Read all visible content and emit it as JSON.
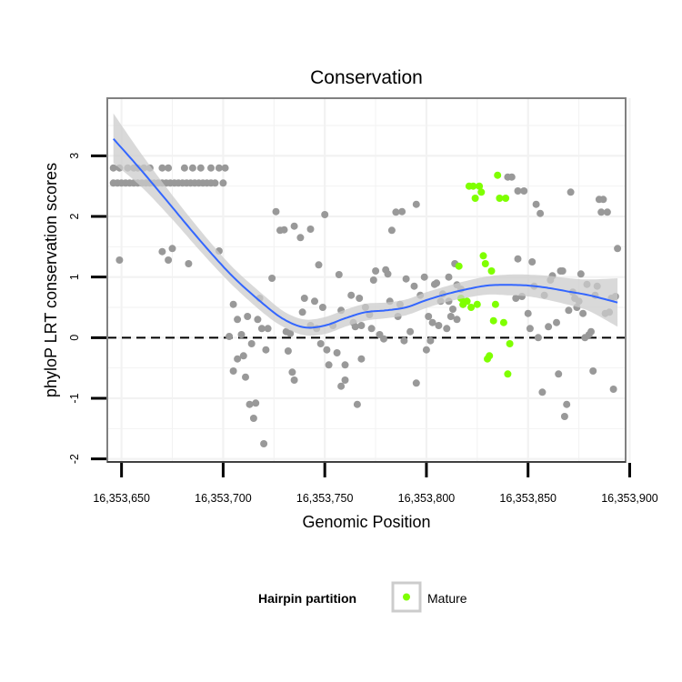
{
  "chart_data": {
    "type": "scatter",
    "title": "Conservation",
    "xlabel": "Genomic Position",
    "ylabel": "phyloP LRT conservation scores",
    "xlim": [
      16353643,
      16353898
    ],
    "ylim": [
      -2.05,
      3.95
    ],
    "x_ticks": [
      16353650,
      16353700,
      16353750,
      16353800,
      16353850,
      16353900
    ],
    "x_tick_labels": [
      "16,353,650",
      "16,353,700",
      "16,353,750",
      "16,353,800",
      "16,353,850",
      "16,353,900"
    ],
    "y_ticks": [
      -2,
      -1,
      0,
      1,
      2,
      3
    ],
    "y_tick_labels": [
      "-2",
      "-1",
      "0",
      "1",
      "2",
      "3"
    ],
    "reference_line": {
      "y": 0,
      "style": "dashed",
      "color": "#000000"
    },
    "legend": {
      "title": "Hairpin partition",
      "entries": [
        {
          "label": "Mature",
          "color": "#7fff00"
        }
      ],
      "position": "bottom"
    },
    "colors": {
      "background_points": "#999999",
      "mature_points": "#7fff00",
      "smooth_line": "#3366ff",
      "confidence_band": "#cccccc",
      "panel_background": "#ffffff",
      "grid": "#f2f2f2",
      "panel_border": "#808080"
    },
    "series": [
      {
        "name": "Hairpin",
        "color": "#999999",
        "points": [
          [
            16353646,
            2.8
          ],
          [
            16353649,
            2.8
          ],
          [
            16353653,
            2.8
          ],
          [
            16353656,
            2.8
          ],
          [
            16353658,
            2.8
          ],
          [
            16353661,
            2.8
          ],
          [
            16353664,
            2.8
          ],
          [
            16353670,
            2.8
          ],
          [
            16353673,
            2.8
          ],
          [
            16353681,
            2.8
          ],
          [
            16353685,
            2.8
          ],
          [
            16353689,
            2.8
          ],
          [
            16353694,
            2.8
          ],
          [
            16353698,
            2.8
          ],
          [
            16353701,
            2.8
          ],
          [
            16353646,
            2.55
          ],
          [
            16353648,
            2.55
          ],
          [
            16353650,
            2.55
          ],
          [
            16353652,
            2.55
          ],
          [
            16353654,
            2.55
          ],
          [
            16353656,
            2.55
          ],
          [
            16353658,
            2.55
          ],
          [
            16353660,
            2.55
          ],
          [
            16353662,
            2.55
          ],
          [
            16353664,
            2.55
          ],
          [
            16353666,
            2.55
          ],
          [
            16353668,
            2.55
          ],
          [
            16353670,
            2.55
          ],
          [
            16353672,
            2.55
          ],
          [
            16353674,
            2.55
          ],
          [
            16353676,
            2.55
          ],
          [
            16353678,
            2.55
          ],
          [
            16353680,
            2.55
          ],
          [
            16353682,
            2.55
          ],
          [
            16353684,
            2.55
          ],
          [
            16353686,
            2.55
          ],
          [
            16353688,
            2.55
          ],
          [
            16353690,
            2.55
          ],
          [
            16353692,
            2.55
          ],
          [
            16353694,
            2.55
          ],
          [
            16353696,
            2.55
          ],
          [
            16353700,
            2.55
          ],
          [
            16353649,
            1.28
          ],
          [
            16353670,
            1.42
          ],
          [
            16353673,
            1.28
          ],
          [
            16353675,
            1.47
          ],
          [
            16353683,
            1.22
          ],
          [
            16353698,
            1.43
          ],
          [
            16353705,
            0.55
          ],
          [
            16353707,
            0.3
          ],
          [
            16353709,
            0.05
          ],
          [
            16353703,
            0.02
          ],
          [
            16353705,
            -0.55
          ],
          [
            16353707,
            -0.35
          ],
          [
            16353710,
            -0.3
          ],
          [
            16353711,
            -0.65
          ],
          [
            16353712,
            0.35
          ],
          [
            16353714,
            -0.1
          ],
          [
            16353713,
            -1.1
          ],
          [
            16353716,
            -1.08
          ],
          [
            16353715,
            -1.33
          ],
          [
            16353717,
            0.3
          ],
          [
            16353718,
            0.65
          ],
          [
            16353719,
            0.15
          ],
          [
            16353721,
            -0.2
          ],
          [
            16353720,
            -1.75
          ],
          [
            16353722,
            0.15
          ],
          [
            16353724,
            0.98
          ],
          [
            16353726,
            2.08
          ],
          [
            16353728,
            1.77
          ],
          [
            16353730,
            1.78
          ],
          [
            16353731,
            0.1
          ],
          [
            16353733,
            0.07
          ],
          [
            16353734,
            -0.57
          ],
          [
            16353735,
            -0.7
          ],
          [
            16353732,
            -0.22
          ],
          [
            16353735,
            1.84
          ],
          [
            16353738,
            1.65
          ],
          [
            16353739,
            0.42
          ],
          [
            16353740,
            0.65
          ],
          [
            16353743,
            0.2
          ],
          [
            16353743,
            1.79
          ],
          [
            16353745,
            0.6
          ],
          [
            16353746,
            0.15
          ],
          [
            16353747,
            1.2
          ],
          [
            16353748,
            -0.1
          ],
          [
            16353749,
            0.5
          ],
          [
            16353750,
            2.03
          ],
          [
            16353751,
            -0.2
          ],
          [
            16353752,
            -0.45
          ],
          [
            16353754,
            0.2
          ],
          [
            16353756,
            -0.25
          ],
          [
            16353757,
            1.04
          ],
          [
            16353758,
            0.45
          ],
          [
            16353758,
            -0.8
          ],
          [
            16353760,
            -0.45
          ],
          [
            16353760,
            -0.7
          ],
          [
            16353763,
            0.7
          ],
          [
            16353764,
            0.25
          ],
          [
            16353765,
            0.18
          ],
          [
            16353766,
            -1.1
          ],
          [
            16353767,
            0.65
          ],
          [
            16353768,
            0.2
          ],
          [
            16353768,
            -0.35
          ],
          [
            16353770,
            0.5
          ],
          [
            16353772,
            0.38
          ],
          [
            16353773,
            0.15
          ],
          [
            16353774,
            0.95
          ],
          [
            16353775,
            1.1
          ],
          [
            16353777,
            0.05
          ],
          [
            16353779,
            -0.02
          ],
          [
            16353780,
            1.12
          ],
          [
            16353781,
            1.05
          ],
          [
            16353782,
            0.6
          ],
          [
            16353783,
            1.77
          ],
          [
            16353785,
            2.07
          ],
          [
            16353786,
            0.35
          ],
          [
            16353787,
            0.55
          ],
          [
            16353788,
            2.08
          ],
          [
            16353789,
            -0.05
          ],
          [
            16353790,
            0.97
          ],
          [
            16353792,
            0.1
          ],
          [
            16353794,
            0.85
          ],
          [
            16353795,
            -0.75
          ],
          [
            16353795,
            2.2
          ],
          [
            16353797,
            0.7
          ],
          [
            16353799,
            1.0
          ],
          [
            16353800,
            -0.2
          ],
          [
            16353801,
            0.35
          ],
          [
            16353802,
            -0.05
          ],
          [
            16353803,
            0.25
          ],
          [
            16353804,
            0.88
          ],
          [
            16353805,
            0.9
          ],
          [
            16353806,
            0.2
          ],
          [
            16353807,
            0.6
          ],
          [
            16353808,
            0.72
          ],
          [
            16353810,
            0.15
          ],
          [
            16353811,
            0.6
          ],
          [
            16353811,
            1.0
          ],
          [
            16353812,
            0.35
          ],
          [
            16353813,
            0.47
          ],
          [
            16353814,
            1.22
          ],
          [
            16353815,
            0.3
          ],
          [
            16353815,
            0.87
          ],
          [
            16353817,
            0.8
          ],
          [
            16353818,
            0.55
          ],
          [
            16353840,
            2.65
          ],
          [
            16353842,
            2.65
          ],
          [
            16353844,
            0.65
          ],
          [
            16353845,
            2.42
          ],
          [
            16353845,
            1.3
          ],
          [
            16353847,
            0.68
          ],
          [
            16353848,
            2.42
          ],
          [
            16353850,
            0.4
          ],
          [
            16353851,
            0.15
          ],
          [
            16353852,
            1.25
          ],
          [
            16353853,
            0.85
          ],
          [
            16353854,
            2.2
          ],
          [
            16353855,
            0.0
          ],
          [
            16353856,
            2.05
          ],
          [
            16353857,
            -0.9
          ],
          [
            16353858,
            0.7
          ],
          [
            16353860,
            0.18
          ],
          [
            16353861,
            0.95
          ],
          [
            16353862,
            1.02
          ],
          [
            16353864,
            0.25
          ],
          [
            16353865,
            -0.6
          ],
          [
            16353866,
            1.1
          ],
          [
            16353867,
            1.1
          ],
          [
            16353868,
            -1.3
          ],
          [
            16353869,
            -1.1
          ],
          [
            16353870,
            0.45
          ],
          [
            16353871,
            2.4
          ],
          [
            16353872,
            0.75
          ],
          [
            16353873,
            0.65
          ],
          [
            16353874,
            0.5
          ],
          [
            16353875,
            0.6
          ],
          [
            16353876,
            1.05
          ],
          [
            16353877,
            0.4
          ],
          [
            16353878,
            0.0
          ],
          [
            16353879,
            0.88
          ],
          [
            16353880,
            0.05
          ],
          [
            16353881,
            0.1
          ],
          [
            16353882,
            -0.55
          ],
          [
            16353883,
            0.7
          ],
          [
            16353884,
            0.85
          ],
          [
            16353885,
            2.28
          ],
          [
            16353886,
            2.07
          ],
          [
            16353887,
            2.28
          ],
          [
            16353888,
            0.4
          ],
          [
            16353889,
            2.07
          ],
          [
            16353890,
            0.42
          ],
          [
            16353891,
            0.65
          ],
          [
            16353892,
            -0.85
          ],
          [
            16353893,
            0.68
          ],
          [
            16353894,
            1.47
          ]
        ]
      },
      {
        "name": "Mature",
        "color": "#7fff00",
        "points": [
          [
            16353816,
            1.18
          ],
          [
            16353817,
            0.65
          ],
          [
            16353818,
            0.55
          ],
          [
            16353820,
            0.6
          ],
          [
            16353821,
            2.5
          ],
          [
            16353822,
            0.5
          ],
          [
            16353823,
            2.5
          ],
          [
            16353824,
            2.3
          ],
          [
            16353825,
            0.55
          ],
          [
            16353826,
            2.5
          ],
          [
            16353827,
            2.4
          ],
          [
            16353828,
            1.35
          ],
          [
            16353829,
            1.22
          ],
          [
            16353830,
            -0.35
          ],
          [
            16353831,
            -0.3
          ],
          [
            16353832,
            1.1
          ],
          [
            16353833,
            0.28
          ],
          [
            16353834,
            0.55
          ],
          [
            16353835,
            2.68
          ],
          [
            16353836,
            2.3
          ],
          [
            16353838,
            0.25
          ],
          [
            16353839,
            2.3
          ],
          [
            16353840,
            -0.6
          ],
          [
            16353841,
            -0.1
          ]
        ]
      }
    ],
    "smooth_fit": {
      "method": "loess",
      "color": "#3366ff",
      "x": [
        16353646,
        16353660,
        16353675,
        16353690,
        16353705,
        16353720,
        16353730,
        16353740,
        16353750,
        16353760,
        16353770,
        16353780,
        16353790,
        16353800,
        16353810,
        16353820,
        16353830,
        16353840,
        16353850,
        16353860,
        16353870,
        16353880,
        16353894
      ],
      "y": [
        3.28,
        2.75,
        2.15,
        1.55,
        1.0,
        0.55,
        0.3,
        0.17,
        0.2,
        0.32,
        0.42,
        0.45,
        0.5,
        0.62,
        0.72,
        0.8,
        0.86,
        0.87,
        0.86,
        0.82,
        0.76,
        0.7,
        0.58
      ],
      "ci_lower": [
        2.88,
        2.48,
        1.95,
        1.38,
        0.85,
        0.4,
        0.17,
        0.04,
        0.06,
        0.18,
        0.28,
        0.32,
        0.37,
        0.49,
        0.59,
        0.66,
        0.71,
        0.7,
        0.68,
        0.62,
        0.54,
        0.44,
        0.18
      ],
      "ci_upper": [
        3.7,
        3.02,
        2.35,
        1.72,
        1.15,
        0.7,
        0.43,
        0.3,
        0.34,
        0.46,
        0.56,
        0.58,
        0.63,
        0.75,
        0.85,
        0.94,
        1.01,
        1.04,
        1.04,
        1.02,
        0.98,
        0.96,
        0.98
      ]
    }
  }
}
